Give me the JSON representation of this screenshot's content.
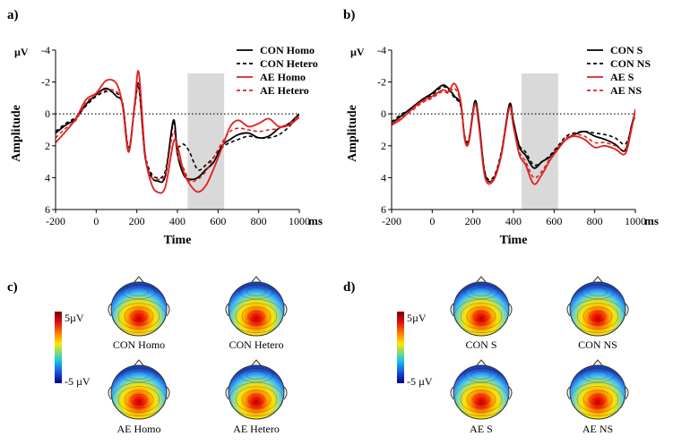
{
  "panel_labels": [
    "a)",
    "b)",
    "c)",
    "d)"
  ],
  "chart_data": [
    {
      "type": "line",
      "panel": "a)",
      "xlabel": "Time",
      "x_unit": "ms",
      "ylabel": "Amplitude",
      "y_unit": "µV",
      "xlim": [
        -200,
        1000
      ],
      "ylim": [
        -4,
        6
      ],
      "y_inverted": true,
      "x_ticks": [
        -200,
        0,
        200,
        400,
        600,
        800,
        1000
      ],
      "y_ticks": [
        -4,
        -2,
        0,
        2,
        4,
        6
      ],
      "highlight_window": [
        450,
        630
      ],
      "zero_line": "dotted",
      "legend_position": "top-right",
      "series": [
        {
          "name": "CON Homo",
          "color": "#000000",
          "dash": "solid",
          "x": [
            -200,
            -150,
            -100,
            -50,
            0,
            50,
            100,
            130,
            160,
            190,
            210,
            240,
            270,
            300,
            340,
            380,
            400,
            430,
            460,
            500,
            540,
            580,
            620,
            660,
            700,
            750,
            800,
            850,
            900,
            950,
            1000
          ],
          "y": [
            1.2,
            0.7,
            0.3,
            -0.6,
            -1.2,
            -1.6,
            -1.1,
            -0.6,
            2.3,
            -0.6,
            -1.8,
            2.6,
            3.9,
            4.2,
            3.9,
            0.4,
            2.5,
            3.8,
            4.1,
            4.0,
            3.5,
            3.0,
            2.0,
            1.6,
            1.3,
            1.2,
            1.5,
            1.4,
            0.9,
            0.6,
            0.0
          ]
        },
        {
          "name": "CON Hetero",
          "color": "#000000",
          "dash": "dashed",
          "x": [
            -200,
            -150,
            -100,
            -50,
            0,
            50,
            100,
            130,
            160,
            190,
            210,
            240,
            270,
            300,
            340,
            380,
            400,
            430,
            460,
            500,
            540,
            580,
            620,
            660,
            700,
            750,
            800,
            850,
            900,
            950,
            1000
          ],
          "y": [
            1.1,
            0.6,
            0.2,
            -0.5,
            -1.1,
            -1.4,
            -1.3,
            -0.7,
            2.1,
            -0.5,
            -1.6,
            2.4,
            3.7,
            4.0,
            3.6,
            0.6,
            2.0,
            1.9,
            2.4,
            3.5,
            3.2,
            2.7,
            2.1,
            1.8,
            1.6,
            1.4,
            1.5,
            1.5,
            1.3,
            0.8,
            0.0
          ]
        },
        {
          "name": "AE Homo",
          "color": "#e02020",
          "dash": "solid",
          "x": [
            -200,
            -150,
            -100,
            -50,
            0,
            50,
            100,
            130,
            160,
            190,
            210,
            240,
            270,
            300,
            340,
            380,
            400,
            430,
            460,
            500,
            540,
            580,
            620,
            660,
            700,
            750,
            800,
            850,
            900,
            950,
            1000
          ],
          "y": [
            1.8,
            1.1,
            0.3,
            -0.9,
            -1.3,
            -2.1,
            -1.9,
            -0.5,
            2.4,
            -0.7,
            -2.6,
            2.4,
            4.3,
            4.9,
            4.6,
            1.8,
            2.0,
            3.6,
            4.4,
            4.9,
            4.5,
            3.4,
            2.1,
            0.8,
            0.4,
            0.8,
            0.6,
            0.3,
            0.8,
            0.7,
            0.2
          ]
        },
        {
          "name": "AE Hetero",
          "color": "#e02020",
          "dash": "dashed",
          "x": [
            -200,
            -150,
            -100,
            -50,
            0,
            50,
            100,
            130,
            160,
            190,
            210,
            240,
            270,
            300,
            340,
            380,
            400,
            430,
            460,
            500,
            540,
            580,
            620,
            660,
            700,
            750,
            800,
            850,
            900,
            950,
            1000
          ],
          "y": [
            1.5,
            0.9,
            0.4,
            -0.7,
            -1.2,
            -1.5,
            -1.4,
            -0.6,
            2.2,
            -0.6,
            -1.7,
            2.5,
            3.9,
            4.1,
            3.8,
            1.1,
            2.6,
            3.4,
            4.2,
            4.1,
            3.6,
            2.7,
            1.8,
            1.1,
            0.9,
            1.0,
            1.1,
            1.0,
            0.9,
            0.6,
            0.1
          ]
        }
      ]
    },
    {
      "type": "line",
      "panel": "b)",
      "xlabel": "Time",
      "x_unit": "ms",
      "ylabel": "Amplitude",
      "y_unit": "µV",
      "xlim": [
        -200,
        1000
      ],
      "ylim": [
        -4,
        6
      ],
      "y_inverted": true,
      "x_ticks": [
        -200,
        0,
        200,
        400,
        600,
        800,
        1000
      ],
      "y_ticks": [
        -4,
        -2,
        0,
        2,
        4,
        6
      ],
      "highlight_window": [
        440,
        620
      ],
      "zero_line": "dotted",
      "legend_position": "top-right",
      "series": [
        {
          "name": "CON S",
          "color": "#000000",
          "dash": "solid",
          "x": [
            -200,
            -150,
            -100,
            -50,
            0,
            50,
            80,
            110,
            140,
            160,
            180,
            210,
            230,
            260,
            300,
            340,
            380,
            400,
            430,
            460,
            500,
            540,
            580,
            620,
            660,
            700,
            750,
            800,
            850,
            900,
            950,
            980,
            1000
          ],
          "y": [
            0.6,
            0.1,
            -0.4,
            -0.9,
            -1.3,
            -1.8,
            -1.6,
            -1.1,
            -0.6,
            1.5,
            1.7,
            -0.8,
            0.5,
            3.8,
            4.1,
            2.5,
            -0.6,
            0.5,
            2.1,
            2.6,
            3.4,
            3.0,
            2.7,
            2.1,
            1.6,
            1.3,
            1.1,
            1.4,
            1.6,
            1.9,
            2.3,
            0.8,
            -0.2
          ]
        },
        {
          "name": "CON NS",
          "color": "#000000",
          "dash": "dashed",
          "x": [
            -200,
            -150,
            -100,
            -50,
            0,
            50,
            80,
            110,
            140,
            160,
            180,
            210,
            230,
            260,
            300,
            340,
            380,
            400,
            430,
            460,
            500,
            540,
            580,
            620,
            660,
            700,
            750,
            800,
            850,
            900,
            950,
            980,
            1000
          ],
          "y": [
            0.5,
            0.0,
            -0.3,
            -0.8,
            -1.2,
            -1.7,
            -1.5,
            -1.0,
            -0.5,
            1.4,
            1.6,
            -0.7,
            0.6,
            3.7,
            4.0,
            2.4,
            -0.5,
            0.7,
            2.0,
            2.4,
            3.2,
            3.0,
            2.6,
            2.0,
            1.4,
            1.2,
            1.1,
            1.2,
            1.3,
            1.5,
            1.9,
            0.9,
            0.0
          ]
        },
        {
          "name": "AE S",
          "color": "#e02020",
          "dash": "solid",
          "x": [
            -200,
            -150,
            -100,
            -50,
            0,
            50,
            80,
            110,
            140,
            160,
            180,
            210,
            230,
            260,
            300,
            340,
            380,
            400,
            430,
            460,
            500,
            540,
            580,
            620,
            660,
            700,
            750,
            800,
            850,
            900,
            950,
            980,
            1000
          ],
          "y": [
            0.7,
            0.3,
            -0.3,
            -0.8,
            -1.1,
            -1.5,
            -1.4,
            -1.9,
            -0.8,
            1.6,
            1.8,
            -0.6,
            0.8,
            4.0,
            4.2,
            2.6,
            -0.4,
            0.8,
            2.6,
            3.2,
            4.4,
            3.8,
            2.9,
            2.2,
            1.6,
            1.4,
            1.6,
            2.1,
            2.0,
            2.2,
            2.5,
            1.0,
            -0.3
          ]
        },
        {
          "name": "AE NS",
          "color": "#e02020",
          "dash": "dashed",
          "x": [
            -200,
            -150,
            -100,
            -50,
            0,
            50,
            80,
            110,
            140,
            160,
            180,
            210,
            230,
            260,
            300,
            340,
            380,
            400,
            430,
            460,
            500,
            540,
            580,
            620,
            660,
            700,
            750,
            800,
            850,
            900,
            950,
            980,
            1000
          ],
          "y": [
            0.6,
            0.2,
            -0.2,
            -0.7,
            -1.0,
            -1.4,
            -1.3,
            -1.6,
            -0.7,
            1.5,
            1.7,
            -0.6,
            0.7,
            3.9,
            4.1,
            2.5,
            -0.4,
            0.8,
            2.4,
            3.0,
            4.0,
            3.6,
            2.8,
            2.1,
            1.5,
            1.3,
            1.4,
            1.8,
            1.8,
            2.0,
            2.2,
            0.9,
            -0.2
          ]
        }
      ]
    }
  ],
  "topomaps": {
    "colorbar_max": "5µV",
    "colorbar_min": "-5 µV",
    "panel_c": [
      "CON Homo",
      "CON Hetero",
      "AE Homo",
      "AE Hetero"
    ],
    "panel_d": [
      "CON S",
      "CON NS",
      "AE S",
      "AE NS"
    ]
  }
}
